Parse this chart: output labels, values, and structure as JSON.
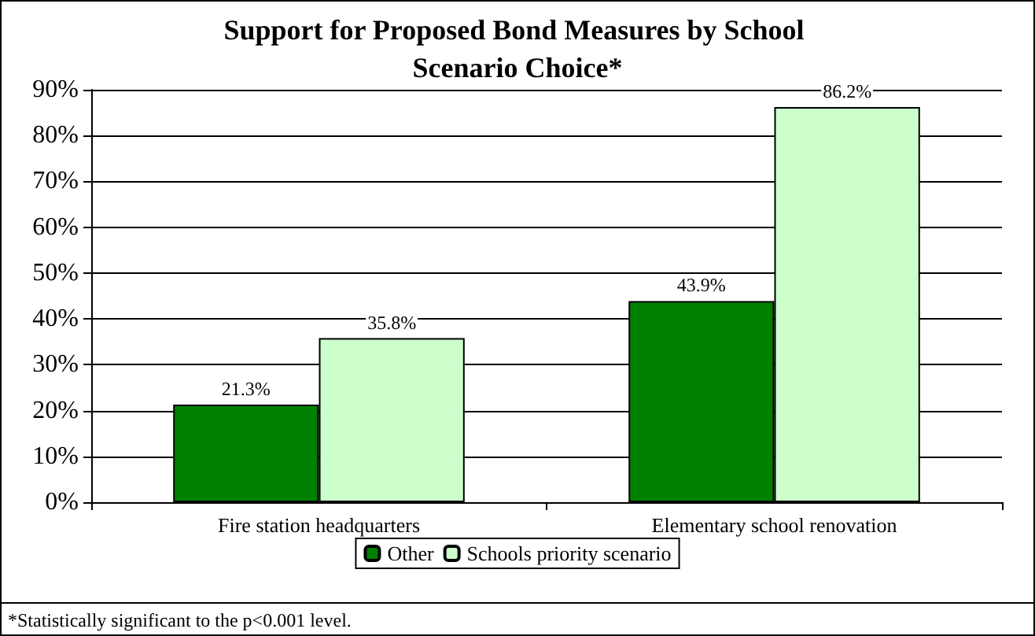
{
  "chart_data": {
    "type": "bar",
    "title": "Support for Proposed Bond Measures by School Scenario Choice*",
    "categories": [
      "Fire station headquarters",
      "Elementary school renovation"
    ],
    "series": [
      {
        "name": "Other",
        "color": "#008000",
        "values": [
          21.3,
          43.9
        ],
        "value_labels": [
          "21.3%",
          "43.9%"
        ]
      },
      {
        "name": "Schools priority scenario",
        "color": "#ccffcc",
        "values": [
          35.8,
          86.2
        ],
        "value_labels": [
          "35.8%",
          "86.2%"
        ]
      }
    ],
    "ylim": [
      0,
      90
    ],
    "yticks": [
      {
        "value": 0,
        "label": "0%"
      },
      {
        "value": 10,
        "label": "10%"
      },
      {
        "value": 20,
        "label": "20%"
      },
      {
        "value": 30,
        "label": "30%"
      },
      {
        "value": 40,
        "label": "40%"
      },
      {
        "value": 50,
        "label": "50%"
      },
      {
        "value": 60,
        "label": "60%"
      },
      {
        "value": 70,
        "label": "70%"
      },
      {
        "value": 80,
        "label": "80%"
      },
      {
        "value": 90,
        "label": "90%"
      }
    ],
    "grid": "y",
    "legend": "bottom",
    "annotations": [
      "*Statistically significant to the p<0.001 level."
    ]
  }
}
